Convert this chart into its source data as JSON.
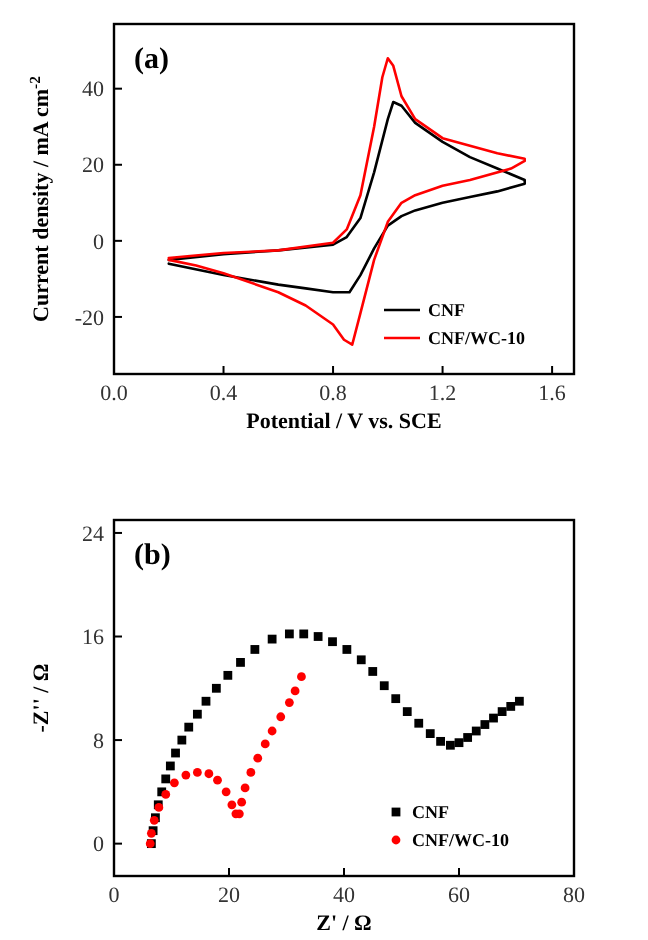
{
  "chart_data": [
    {
      "type": "line",
      "title": "(a)",
      "xlabel": "Potential / V vs. SCE",
      "ylabel": "Current density / mA cm$^{-2}$",
      "xlim": [
        0,
        1.68
      ],
      "ylim": [
        -35,
        57
      ],
      "xticks": [
        {
          "value": 0,
          "label": "0.0"
        },
        0.4,
        0.8,
        1.2,
        1.6
      ],
      "yticks": [
        -20,
        0,
        20,
        40
      ],
      "legend": "bottom right",
      "line_style": "solid",
      "marker": "none",
      "series": [
        {
          "name": "CNF",
          "color": "#000000",
          "x": [
            0.2,
            0.4,
            0.6,
            0.8,
            0.85,
            0.9,
            0.95,
            1.0,
            1.02,
            1.05,
            1.1,
            1.2,
            1.3,
            1.4,
            1.5,
            1.5,
            1.4,
            1.3,
            1.2,
            1.1,
            1.05,
            1.0,
            0.95,
            0.9,
            0.86,
            0.8,
            0.7,
            0.6,
            0.4,
            0.2
          ],
          "values": [
            -5,
            -3.5,
            -2.5,
            -1,
            1,
            6,
            18,
            32,
            36.5,
            35.5,
            31,
            26,
            22,
            19,
            16,
            15,
            13,
            11.5,
            10,
            8,
            6.5,
            4,
            -2,
            -9,
            -13.5,
            -13.5,
            -12.5,
            -11.5,
            -9,
            -6
          ]
        },
        {
          "name": "CNF/WC-10",
          "color": "#ff0000",
          "x": [
            0.2,
            0.4,
            0.6,
            0.8,
            0.85,
            0.9,
            0.95,
            0.98,
            1.0,
            1.02,
            1.05,
            1.1,
            1.2,
            1.3,
            1.4,
            1.5,
            1.5,
            1.45,
            1.3,
            1.2,
            1.1,
            1.05,
            1.0,
            0.95,
            0.9,
            0.87,
            0.84,
            0.8,
            0.7,
            0.6,
            0.4,
            0.3,
            0.2
          ],
          "values": [
            -4.5,
            -3.2,
            -2.5,
            -0.5,
            3,
            12,
            30,
            43,
            48,
            46,
            38,
            32,
            27,
            25,
            23,
            21.6,
            21,
            19,
            16,
            14.5,
            12,
            10,
            5,
            -5,
            -19,
            -27.3,
            -26,
            -22,
            -17,
            -13.5,
            -8.5,
            -6.5,
            -5
          ]
        }
      ]
    },
    {
      "type": "scatter",
      "title": "(b)",
      "xlabel": "Z' / Ω",
      "ylabel": "-Z'' / Ω",
      "xlim": [
        0,
        80
      ],
      "ylim": [
        -2.5,
        25
      ],
      "xticks": [
        0,
        20,
        40,
        60,
        80
      ],
      "yticks": [
        0,
        8,
        16,
        24
      ],
      "legend": "bottom right",
      "series": [
        {
          "name": "CNF",
          "color": "#000000",
          "marker": "square",
          "x": [
            6.5,
            6.8,
            7.2,
            7.7,
            8.3,
            9,
            9.8,
            10.7,
            11.8,
            13,
            14.5,
            16,
            17.8,
            19.8,
            22,
            24.5,
            27.5,
            30.5,
            33,
            35.5,
            38,
            40.5,
            43,
            45,
            47,
            49,
            51,
            53,
            55,
            56.8,
            58.5,
            60,
            61.5,
            63,
            64.5,
            66,
            67.5,
            69,
            70.5
          ],
          "values": [
            0,
            1,
            2,
            3,
            4,
            5,
            6,
            7,
            8,
            9,
            10,
            11,
            12,
            13,
            14,
            15,
            15.8,
            16.2,
            16.2,
            16,
            15.6,
            15,
            14.2,
            13.3,
            12.2,
            11.2,
            10.2,
            9.3,
            8.5,
            7.9,
            7.6,
            7.8,
            8.2,
            8.7,
            9.2,
            9.7,
            10.2,
            10.6,
            11
          ]
        },
        {
          "name": "CNF/WC-10",
          "color": "#ff0000",
          "marker": "circle",
          "x": [
            6.3,
            6.5,
            7,
            7.8,
            9,
            10.5,
            12.5,
            14.5,
            16.5,
            18,
            19.5,
            20.5,
            21.2,
            21.8,
            22.2,
            22.8,
            23.8,
            25,
            26.3,
            27.5,
            29,
            30.5,
            31.5,
            32.6
          ],
          "values": [
            0,
            0.8,
            1.8,
            2.8,
            3.8,
            4.7,
            5.3,
            5.5,
            5.4,
            4.9,
            4,
            3,
            2.3,
            2.3,
            3.2,
            4.3,
            5.5,
            6.6,
            7.7,
            8.7,
            9.8,
            10.9,
            11.8,
            12.9
          ]
        }
      ]
    }
  ]
}
